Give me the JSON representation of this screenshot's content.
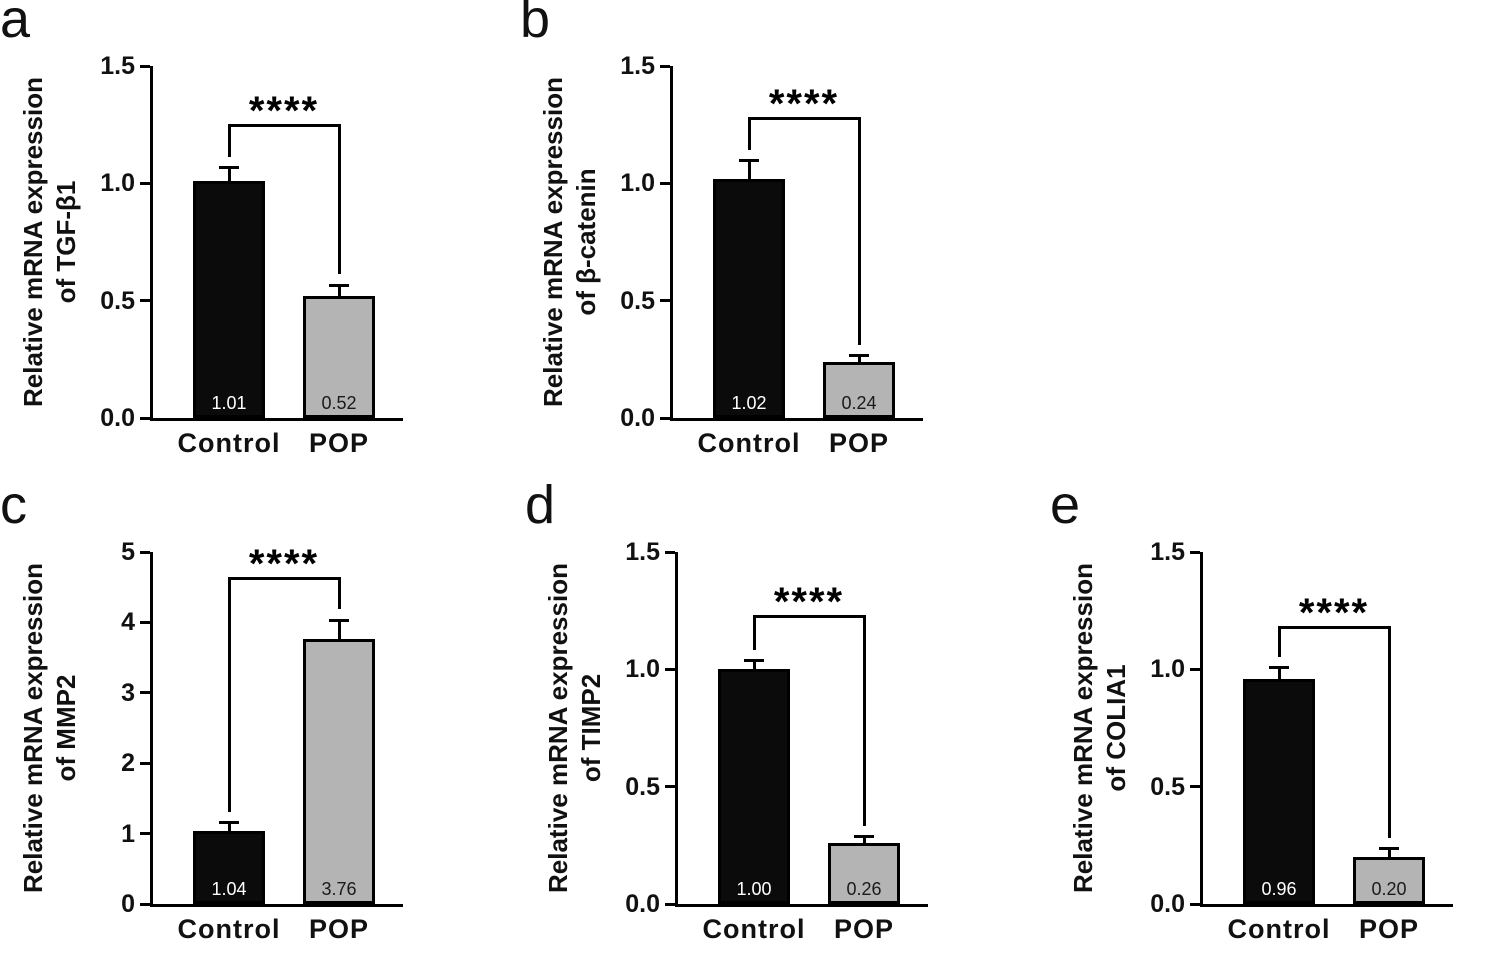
{
  "figure": {
    "background": "#ffffff",
    "group_colors": {
      "control": "#0b0b0b",
      "pop": "#b4b4b4"
    },
    "panel_letters": [
      "a",
      "b",
      "c",
      "d",
      "e"
    ]
  },
  "chart_data": [
    {
      "type": "bar",
      "panel": "a",
      "title": "",
      "ylabel": "Relative mRNA expression of TGF-β1",
      "ylabel_lines": [
        "Relative mRNA expression",
        "of TGF-β1"
      ],
      "xlabel": "",
      "categories": [
        "Control",
        "POP"
      ],
      "values": [
        1.01,
        0.52
      ],
      "value_labels": [
        "1.01",
        "0.52"
      ],
      "errors": [
        0.05,
        0.04
      ],
      "ylim": [
        0,
        1.5
      ],
      "yticks": [
        {
          "value": 0,
          "label": "0.0"
        },
        {
          "value": 0.5,
          "label": "0.5"
        },
        {
          "value": 1.0,
          "label": "1.0"
        },
        {
          "value": 1.5,
          "label": "1.5"
        }
      ],
      "significance": "****",
      "bracket_y": 1.24,
      "bar_colors": [
        "#0b0b0b",
        "#b4b4b4"
      ],
      "value_label_colors": [
        "#ffffff",
        "#1a1a1a"
      ],
      "grid": false,
      "legend": "none"
    },
    {
      "type": "bar",
      "panel": "b",
      "title": "",
      "ylabel": "Relative mRNA expression of β-catenin",
      "ylabel_lines": [
        "Relative mRNA expression",
        "of β-catenin"
      ],
      "xlabel": "",
      "categories": [
        "Control",
        "POP"
      ],
      "values": [
        1.02,
        0.24
      ],
      "value_labels": [
        "1.02",
        "0.24"
      ],
      "errors": [
        0.07,
        0.02
      ],
      "ylim": [
        0,
        1.5
      ],
      "yticks": [
        {
          "value": 0,
          "label": "0.0"
        },
        {
          "value": 0.5,
          "label": "0.5"
        },
        {
          "value": 1.0,
          "label": "1.0"
        },
        {
          "value": 1.5,
          "label": "1.5"
        }
      ],
      "significance": "****",
      "bracket_y": 1.27,
      "bar_colors": [
        "#0b0b0b",
        "#b4b4b4"
      ],
      "value_label_colors": [
        "#ffffff",
        "#1a1a1a"
      ],
      "grid": false,
      "legend": "none"
    },
    {
      "type": "bar",
      "panel": "c",
      "title": "",
      "ylabel": "Relative mRNA expression of MMP2",
      "ylabel_lines": [
        "Relative mRNA expression",
        "of MMP2"
      ],
      "xlabel": "",
      "categories": [
        "Control",
        "POP"
      ],
      "values": [
        1.04,
        3.76
      ],
      "value_labels": [
        "1.04",
        "3.76"
      ],
      "errors": [
        0.09,
        0.25
      ],
      "ylim": [
        0,
        5
      ],
      "yticks": [
        {
          "value": 0,
          "label": "0"
        },
        {
          "value": 1,
          "label": "1"
        },
        {
          "value": 2,
          "label": "2"
        },
        {
          "value": 3,
          "label": "3"
        },
        {
          "value": 4,
          "label": "4"
        },
        {
          "value": 5,
          "label": "5"
        }
      ],
      "significance": "****",
      "bracket_y": 4.6,
      "bar_colors": [
        "#0b0b0b",
        "#b4b4b4"
      ],
      "value_label_colors": [
        "#ffffff",
        "#1a1a1a"
      ],
      "grid": false,
      "legend": "none"
    },
    {
      "type": "bar",
      "panel": "d",
      "title": "",
      "ylabel": "Relative mRNA expression of TIMP2",
      "ylabel_lines": [
        "Relative mRNA expression",
        "of TIMP2"
      ],
      "xlabel": "",
      "categories": [
        "Control",
        "POP"
      ],
      "values": [
        1.0,
        0.26
      ],
      "value_labels": [
        "1.00",
        "0.26"
      ],
      "errors": [
        0.03,
        0.02
      ],
      "ylim": [
        0,
        1.5
      ],
      "yticks": [
        {
          "value": 0,
          "label": "0.0"
        },
        {
          "value": 0.5,
          "label": "0.5"
        },
        {
          "value": 1.0,
          "label": "1.0"
        },
        {
          "value": 1.5,
          "label": "1.5"
        }
      ],
      "significance": "****",
      "bracket_y": 1.22,
      "bar_colors": [
        "#0b0b0b",
        "#b4b4b4"
      ],
      "value_label_colors": [
        "#ffffff",
        "#1a1a1a"
      ],
      "grid": false,
      "legend": "none"
    },
    {
      "type": "bar",
      "panel": "e",
      "title": "",
      "ylabel": "Relative mRNA expression of COLIA1",
      "ylabel_lines": [
        "Relative mRNA expression",
        "of COLIA1"
      ],
      "xlabel": "",
      "categories": [
        "Control",
        "POP"
      ],
      "values": [
        0.96,
        0.2
      ],
      "value_labels": [
        "0.96",
        "0.20"
      ],
      "errors": [
        0.04,
        0.03
      ],
      "ylim": [
        0,
        1.5
      ],
      "yticks": [
        {
          "value": 0,
          "label": "0.0"
        },
        {
          "value": 0.5,
          "label": "0.5"
        },
        {
          "value": 1.0,
          "label": "1.0"
        },
        {
          "value": 1.5,
          "label": "1.5"
        }
      ],
      "significance": "****",
      "bracket_y": 1.17,
      "bar_colors": [
        "#0b0b0b",
        "#b4b4b4"
      ],
      "value_label_colors": [
        "#ffffff",
        "#1a1a1a"
      ],
      "grid": false,
      "legend": "none"
    }
  ]
}
